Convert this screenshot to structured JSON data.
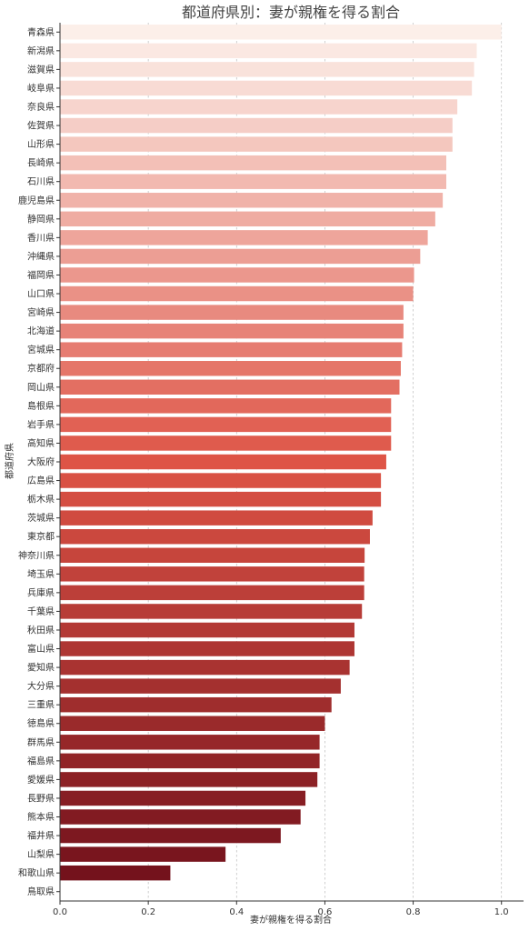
{
  "chart_data": {
    "type": "bar",
    "orientation": "horizontal",
    "title": "都道府県別：妻が親権を得る割合",
    "xlabel": "妻が親権を得る割合",
    "ylabel": "都道府県",
    "xlim": [
      0,
      1.05
    ],
    "xticks": [
      "0.0",
      "0.2",
      "0.4",
      "0.6",
      "0.8",
      "1.0"
    ],
    "grid": "vertical dashed",
    "colors": {
      "light": "#fcefe9",
      "dark": "#6f0f1a"
    },
    "categories": [
      "青森県",
      "新潟県",
      "滋賀県",
      "岐阜県",
      "奈良県",
      "佐賀県",
      "山形県",
      "長崎県",
      "石川県",
      "鹿児島県",
      "静岡県",
      "香川県",
      "沖縄県",
      "福岡県",
      "山口県",
      "宮崎県",
      "北海道",
      "宮城県",
      "京都府",
      "岡山県",
      "島根県",
      "岩手県",
      "高知県",
      "大阪府",
      "広島県",
      "栃木県",
      "茨城県",
      "東京都",
      "神奈川県",
      "埼玉県",
      "兵庫県",
      "千葉県",
      "秋田県",
      "富山県",
      "愛知県",
      "大分県",
      "三重県",
      "徳島県",
      "群馬県",
      "福島県",
      "愛媛県",
      "長野県",
      "熊本県",
      "福井県",
      "山梨県",
      "和歌山県",
      "鳥取県"
    ],
    "values": [
      1.0,
      0.944,
      0.938,
      0.933,
      0.9,
      0.889,
      0.889,
      0.875,
      0.875,
      0.867,
      0.85,
      0.833,
      0.816,
      0.802,
      0.8,
      0.778,
      0.778,
      0.775,
      0.772,
      0.769,
      0.75,
      0.75,
      0.75,
      0.739,
      0.727,
      0.727,
      0.708,
      0.702,
      0.69,
      0.689,
      0.689,
      0.684,
      0.667,
      0.667,
      0.656,
      0.636,
      0.615,
      0.6,
      0.588,
      0.588,
      0.583,
      0.556,
      0.545,
      0.5,
      0.375,
      0.25,
      0.0
    ]
  }
}
